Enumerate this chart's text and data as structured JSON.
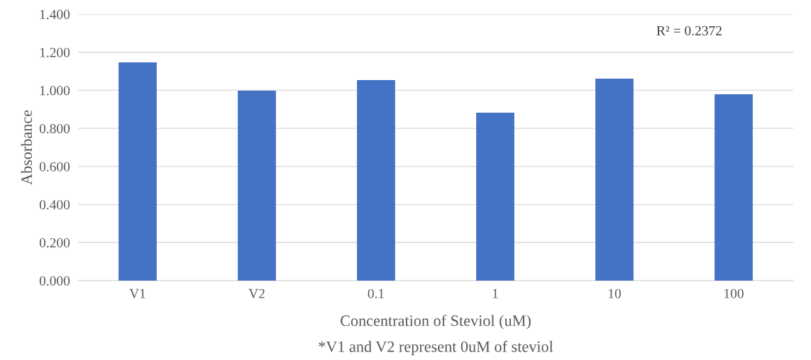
{
  "chart_data": {
    "type": "bar",
    "ylabel": "Absorbance",
    "xlabel": "Concentration of Steviol (uM)",
    "categories": [
      "V1",
      "V2",
      "0.1",
      "1",
      "10",
      "100"
    ],
    "values": [
      1.147,
      0.998,
      1.054,
      0.882,
      1.061,
      0.979
    ],
    "color": "#4472c4",
    "ylim": [
      0,
      1.4
    ],
    "yticks": [
      {
        "value": 0,
        "label": "0.000"
      },
      {
        "value": 0.2,
        "label": "0.200"
      },
      {
        "value": 0.4,
        "label": "0.400"
      },
      {
        "value": 0.6,
        "label": "0.600"
      },
      {
        "value": 0.8,
        "label": "0.800"
      },
      {
        "value": 1.0,
        "label": "1.000"
      },
      {
        "value": 1.2,
        "label": "1.200"
      },
      {
        "value": 1.4,
        "label": "1.400"
      }
    ],
    "grid": "y",
    "annotations": [
      "R² = 0.2372",
      "*V1 and V2 represent 0uM of steviol"
    ]
  }
}
